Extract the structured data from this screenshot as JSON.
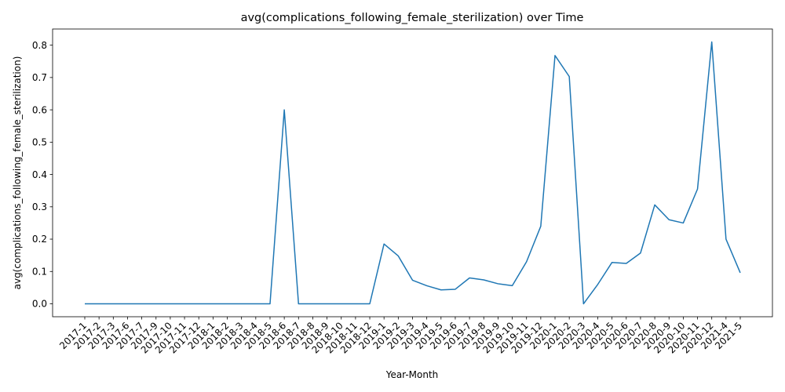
{
  "chart_data": {
    "type": "line",
    "title": "avg(complications_following_female_sterilization) over Time",
    "xlabel": "Year-Month",
    "ylabel": "avg(complications_following_female_sterilization)",
    "ylim": [
      -0.04,
      0.85
    ],
    "yticks": [
      0.0,
      0.1,
      0.2,
      0.3,
      0.4,
      0.5,
      0.6,
      0.7,
      0.8
    ],
    "ytick_labels": [
      "0.0",
      "0.1",
      "0.2",
      "0.3",
      "0.4",
      "0.5",
      "0.6",
      "0.7",
      "0.8"
    ],
    "grid": false,
    "legend": "none",
    "categories": [
      "2017-1",
      "2017-2",
      "2017-3",
      "2017-6",
      "2017-7",
      "2017-9",
      "2017-10",
      "2017-11",
      "2017-12",
      "2018-1",
      "2018-2",
      "2018-3",
      "2018-4",
      "2018-5",
      "2018-6",
      "2018-7",
      "2018-8",
      "2018-9",
      "2018-10",
      "2018-11",
      "2018-12",
      "2019-1",
      "2019-2",
      "2019-3",
      "2019-4",
      "2019-5",
      "2019-6",
      "2019-7",
      "2019-8",
      "2019-9",
      "2019-10",
      "2019-11",
      "2019-12",
      "2020-1",
      "2020-2",
      "2020-3",
      "2020-4",
      "2020-5",
      "2020-6",
      "2020-7",
      "2020-8",
      "2020-9",
      "2020-10",
      "2020-11",
      "2020-12",
      "2021-4",
      "2021-5"
    ],
    "series": [
      {
        "color": "#1f77b4",
        "values": [
          0,
          0,
          0,
          0,
          0,
          0,
          0,
          0,
          0,
          0,
          0,
          0,
          0,
          0,
          0.6,
          0,
          0,
          0,
          0,
          0,
          0,
          0.185,
          0.148,
          0.073,
          0.056,
          0.043,
          0.045,
          0.08,
          0.074,
          0.062,
          0.056,
          0.13,
          0.24,
          0.768,
          0.703,
          0,
          0.06,
          0.128,
          0.125,
          0.157,
          0.306,
          0.26,
          0.25,
          0.355,
          0.81,
          0.2,
          0.096
        ]
      }
    ]
  }
}
